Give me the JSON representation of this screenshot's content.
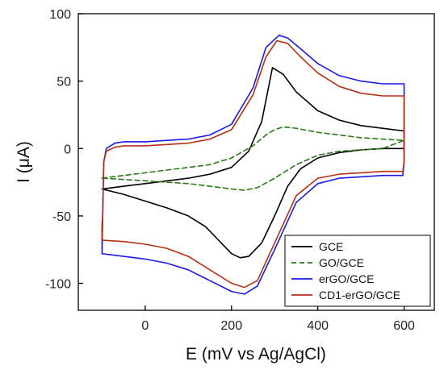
{
  "chart_data": {
    "type": "line",
    "xlabel": "E (mV vs Ag/AgCl)",
    "ylabel": "I (μA)",
    "xlim": [
      -155,
      670
    ],
    "ylim": [
      -120,
      100
    ],
    "xticks": [
      0,
      200,
      400,
      600
    ],
    "yticks": [
      -100,
      -50,
      0,
      50,
      100
    ],
    "grid": false,
    "legend_position": "bottom-right",
    "series": [
      {
        "name": "GCE",
        "color": "#000000",
        "dash": "solid",
        "x": [
          -100,
          -50,
          0,
          50,
          100,
          150,
          200,
          240,
          270,
          295,
          320,
          350,
          400,
          450,
          500,
          550,
          600,
          600,
          550,
          500,
          450,
          400,
          360,
          330,
          300,
          270,
          240,
          220,
          200,
          170,
          140,
          100,
          50,
          0,
          -50,
          -100
        ],
        "y": [
          -30,
          -28,
          -26,
          -24,
          -22,
          -19,
          -14,
          -2,
          20,
          60,
          55,
          42,
          28,
          21,
          17,
          15,
          13,
          0,
          0,
          -1,
          -3,
          -7,
          -15,
          -28,
          -50,
          -70,
          -80,
          -81,
          -78,
          -68,
          -58,
          -50,
          -44,
          -39,
          -34,
          -30
        ]
      },
      {
        "name": "GO/GCE",
        "color": "#2a7a1a",
        "dash": "dashed",
        "x": [
          -100,
          -50,
          0,
          50,
          100,
          150,
          200,
          250,
          280,
          300,
          320,
          350,
          400,
          450,
          500,
          550,
          600,
          550,
          500,
          450,
          400,
          350,
          300,
          260,
          230,
          200,
          150,
          100,
          50,
          0,
          -50,
          -100
        ],
        "y": [
          -22,
          -20,
          -18,
          -16,
          -14,
          -12,
          -7,
          2,
          10,
          14,
          16,
          15,
          12,
          10,
          8,
          7,
          6,
          0,
          -1,
          -2,
          -5,
          -12,
          -22,
          -29,
          -31,
          -30,
          -28,
          -26,
          -25,
          -24,
          -23,
          -22
        ]
      },
      {
        "name": "erGO/GCE",
        "color": "#1a1ae6",
        "dash": "solid",
        "x": [
          -100,
          -96,
          -90,
          -70,
          -50,
          0,
          50,
          100,
          150,
          200,
          250,
          280,
          310,
          330,
          360,
          400,
          450,
          500,
          550,
          600,
          600,
          597,
          590,
          550,
          500,
          450,
          400,
          350,
          300,
          260,
          230,
          200,
          150,
          100,
          50,
          0,
          -50,
          -100,
          -100
        ],
        "y": [
          -78,
          -10,
          0,
          4,
          5,
          5,
          6,
          7,
          10,
          18,
          45,
          75,
          84,
          82,
          74,
          63,
          54,
          50,
          48,
          48,
          -10,
          -20,
          -20,
          -20,
          -21,
          -22,
          -26,
          -40,
          -75,
          -102,
          -108,
          -106,
          -98,
          -90,
          -85,
          -82,
          -80,
          -78,
          -60
        ]
      },
      {
        "name": "CD1-erGO/GCE",
        "color": "#b52e17",
        "dash": "solid",
        "x": [
          -100,
          -96,
          -90,
          -70,
          -50,
          0,
          50,
          100,
          150,
          200,
          250,
          280,
          305,
          330,
          360,
          400,
          450,
          500,
          550,
          600,
          600,
          597,
          590,
          550,
          500,
          450,
          400,
          350,
          300,
          260,
          230,
          200,
          150,
          100,
          50,
          0,
          -50,
          -100,
          -100
        ],
        "y": [
          -68,
          -10,
          -2,
          1,
          2,
          2,
          3,
          4,
          7,
          14,
          40,
          68,
          80,
          78,
          68,
          56,
          46,
          41,
          39,
          39,
          -10,
          -17,
          -17,
          -17,
          -18,
          -19,
          -22,
          -35,
          -70,
          -98,
          -103,
          -100,
          -90,
          -80,
          -74,
          -71,
          -69,
          -68,
          -55
        ]
      }
    ]
  }
}
